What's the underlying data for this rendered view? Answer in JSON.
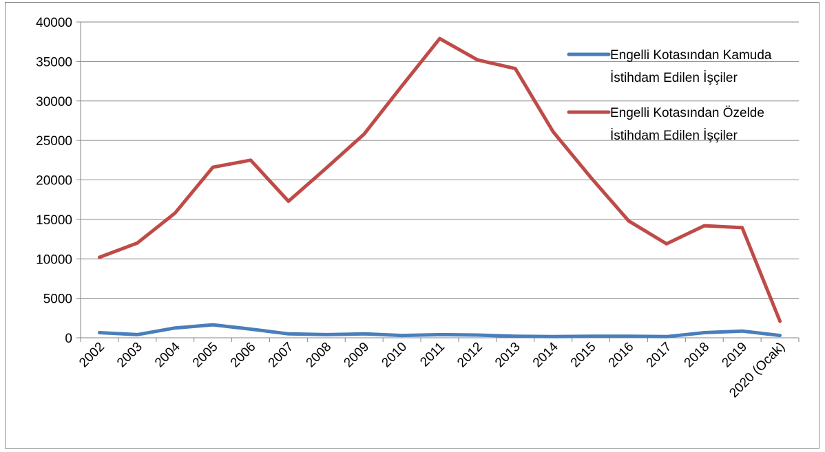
{
  "chart_data": {
    "type": "line",
    "title": "",
    "xlabel": "",
    "ylabel": "",
    "categories": [
      "2002",
      "2003",
      "2004",
      "2005",
      "2006",
      "2007",
      "2008",
      "2009",
      "2010",
      "2011",
      "2012",
      "2013",
      "2014",
      "2015",
      "2016",
      "2017",
      "2018",
      "2019",
      "2020 (Ocak)"
    ],
    "ylim": [
      0,
      40000
    ],
    "yticks": [
      0,
      5000,
      10000,
      15000,
      20000,
      25000,
      30000,
      35000,
      40000
    ],
    "grid": true,
    "legend_position": "right",
    "series": [
      {
        "name": [
          "Engelli Kotasından Kamuda",
          "İstihdam Edilen İşçiler"
        ],
        "color": "#4a7ebb",
        "values": [
          650,
          400,
          1250,
          1650,
          1100,
          500,
          400,
          500,
          300,
          400,
          350,
          200,
          150,
          200,
          200,
          150,
          650,
          850,
          300
        ]
      },
      {
        "name": [
          "Engelli Kotasından Özelde",
          "İstihdam Edilen İşçiler"
        ],
        "color": "#be4b48",
        "values": [
          10200,
          12000,
          15800,
          21600,
          22500,
          17300,
          21500,
          25800,
          31900,
          37900,
          35200,
          34100,
          26100,
          20300,
          14800,
          11900,
          14200,
          13950,
          2100
        ]
      }
    ]
  }
}
